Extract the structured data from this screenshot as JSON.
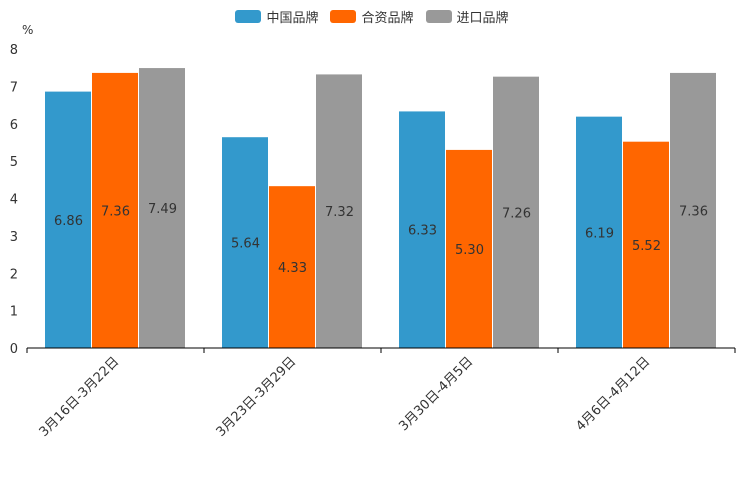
{
  "chart_data": {
    "type": "bar",
    "unit": "%",
    "ylim": [
      0,
      8
    ],
    "yticks": [
      "0",
      "1",
      "2",
      "3",
      "4",
      "5",
      "6",
      "7",
      "8"
    ],
    "categories": [
      "3月16日-3月22日",
      "3月23日-3月29日",
      "3月30日-4月5日",
      "4月6日-4月12日"
    ],
    "series": [
      {
        "name": "中国品牌",
        "color": "#3399cc",
        "values": [
          6.86,
          5.64,
          6.33,
          6.19
        ],
        "labels": [
          "6.86",
          "5.64",
          "6.33",
          "6.19"
        ]
      },
      {
        "name": "合资品牌",
        "color": "#ff6600",
        "values": [
          7.36,
          4.33,
          5.3,
          5.52
        ],
        "labels": [
          "7.36",
          "4.33",
          "5.30",
          "5.52"
        ]
      },
      {
        "name": "进口品牌",
        "color": "#999999",
        "values": [
          7.49,
          7.32,
          7.26,
          7.36
        ],
        "labels": [
          "7.49",
          "7.32",
          "7.26",
          "7.36"
        ]
      }
    ]
  }
}
